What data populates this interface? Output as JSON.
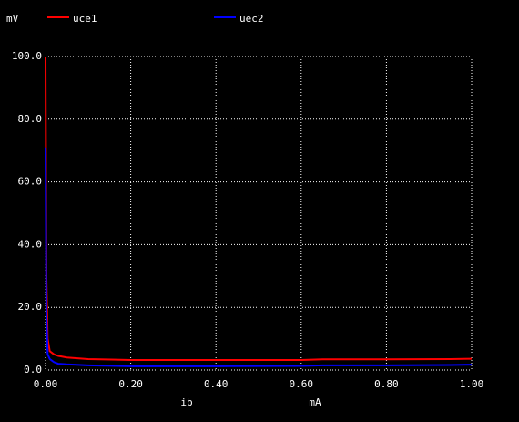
{
  "chart_data": {
    "type": "line",
    "y_unit": "mV",
    "x_label": "ib",
    "x_unit": "mA",
    "x": [
      0,
      0.002,
      0.005,
      0.01,
      0.02,
      0.03,
      0.05,
      0.1,
      0.2,
      0.4,
      0.6,
      0.65,
      0.8,
      0.95,
      1.0
    ],
    "series": [
      {
        "name": "uce1",
        "color": "#ff0000",
        "values": [
          100,
          30,
          10,
          6,
          5,
          4.5,
          4,
          3.5,
          3.2,
          3.2,
          3.2,
          3.4,
          3.4,
          3.5,
          3.6
        ]
      },
      {
        "name": "uec2",
        "color": "#0000ff",
        "values": [
          71,
          18,
          5,
          3.5,
          2.5,
          2,
          1.8,
          1.5,
          1.2,
          1.2,
          1.3,
          1.5,
          1.5,
          1.6,
          1.7
        ]
      }
    ],
    "xlim": [
      0,
      1.0
    ],
    "xticks": [
      {
        "value": 0,
        "label": "0.00"
      },
      {
        "value": 0.2,
        "label": "0.20"
      },
      {
        "value": 0.4,
        "label": "0.40"
      },
      {
        "value": 0.6,
        "label": "0.60"
      },
      {
        "value": 0.8,
        "label": "0.80"
      },
      {
        "value": 1.0,
        "label": "1.00"
      }
    ],
    "ylim": [
      0,
      100
    ],
    "yticks": [
      {
        "value": 0,
        "label": "0.0"
      },
      {
        "value": 20,
        "label": "20.0"
      },
      {
        "value": 40,
        "label": "40.0"
      },
      {
        "value": 60,
        "label": "60.0"
      },
      {
        "value": 80,
        "label": "80.0"
      },
      {
        "value": 100,
        "label": "100.0"
      }
    ],
    "grid": true
  }
}
